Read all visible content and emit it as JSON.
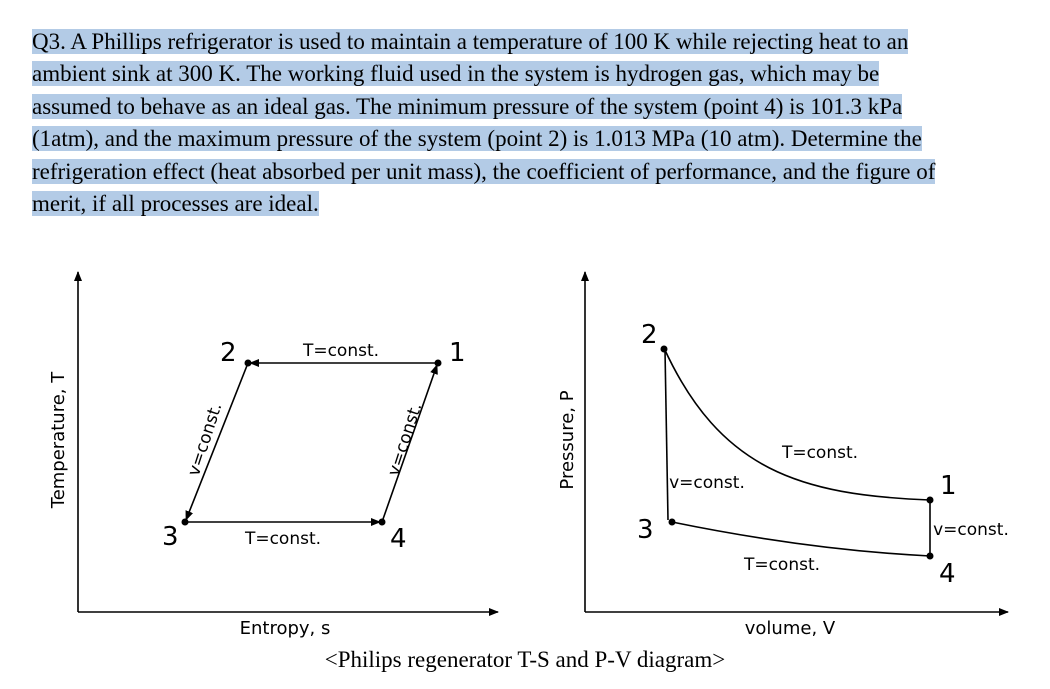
{
  "question": {
    "lines": [
      "Q3. A Phillips refrigerator is used to maintain a temperature of 100 K while rejecting heat to an",
      "ambient sink at 300 K. The working fluid used in the system is hydrogen gas, which may be",
      "assumed to behave as an ideal gas. The minimum pressure of the system (point 4) is 101.3 kPa",
      "(1atm), and the maximum pressure of the system (point 2) is 1.013 MPa (10 atm). Determine the",
      "refrigeration effect (heat absorbed per unit mass), the coefficient of performance, and the figure of",
      "merit, if all processes are ideal."
    ]
  },
  "ts_diagram": {
    "y_label": "Temperature, T",
    "x_label": "Entropy, s",
    "points": [
      "1",
      "2",
      "3",
      "4"
    ],
    "top_label": "T=const.",
    "bottom_label": "T=const.",
    "left_label": "v=const.",
    "right_label": "v=const."
  },
  "pv_diagram": {
    "y_label": "Pressure, P",
    "x_label": "volume, V",
    "points": [
      "1",
      "2",
      "3",
      "4"
    ],
    "top_label": "T=const.",
    "bottom_label": "T=const.",
    "left_label": "v=const.",
    "right_label": "v=const."
  },
  "caption": "<Philips regenerator T-S and P-V diagram>"
}
